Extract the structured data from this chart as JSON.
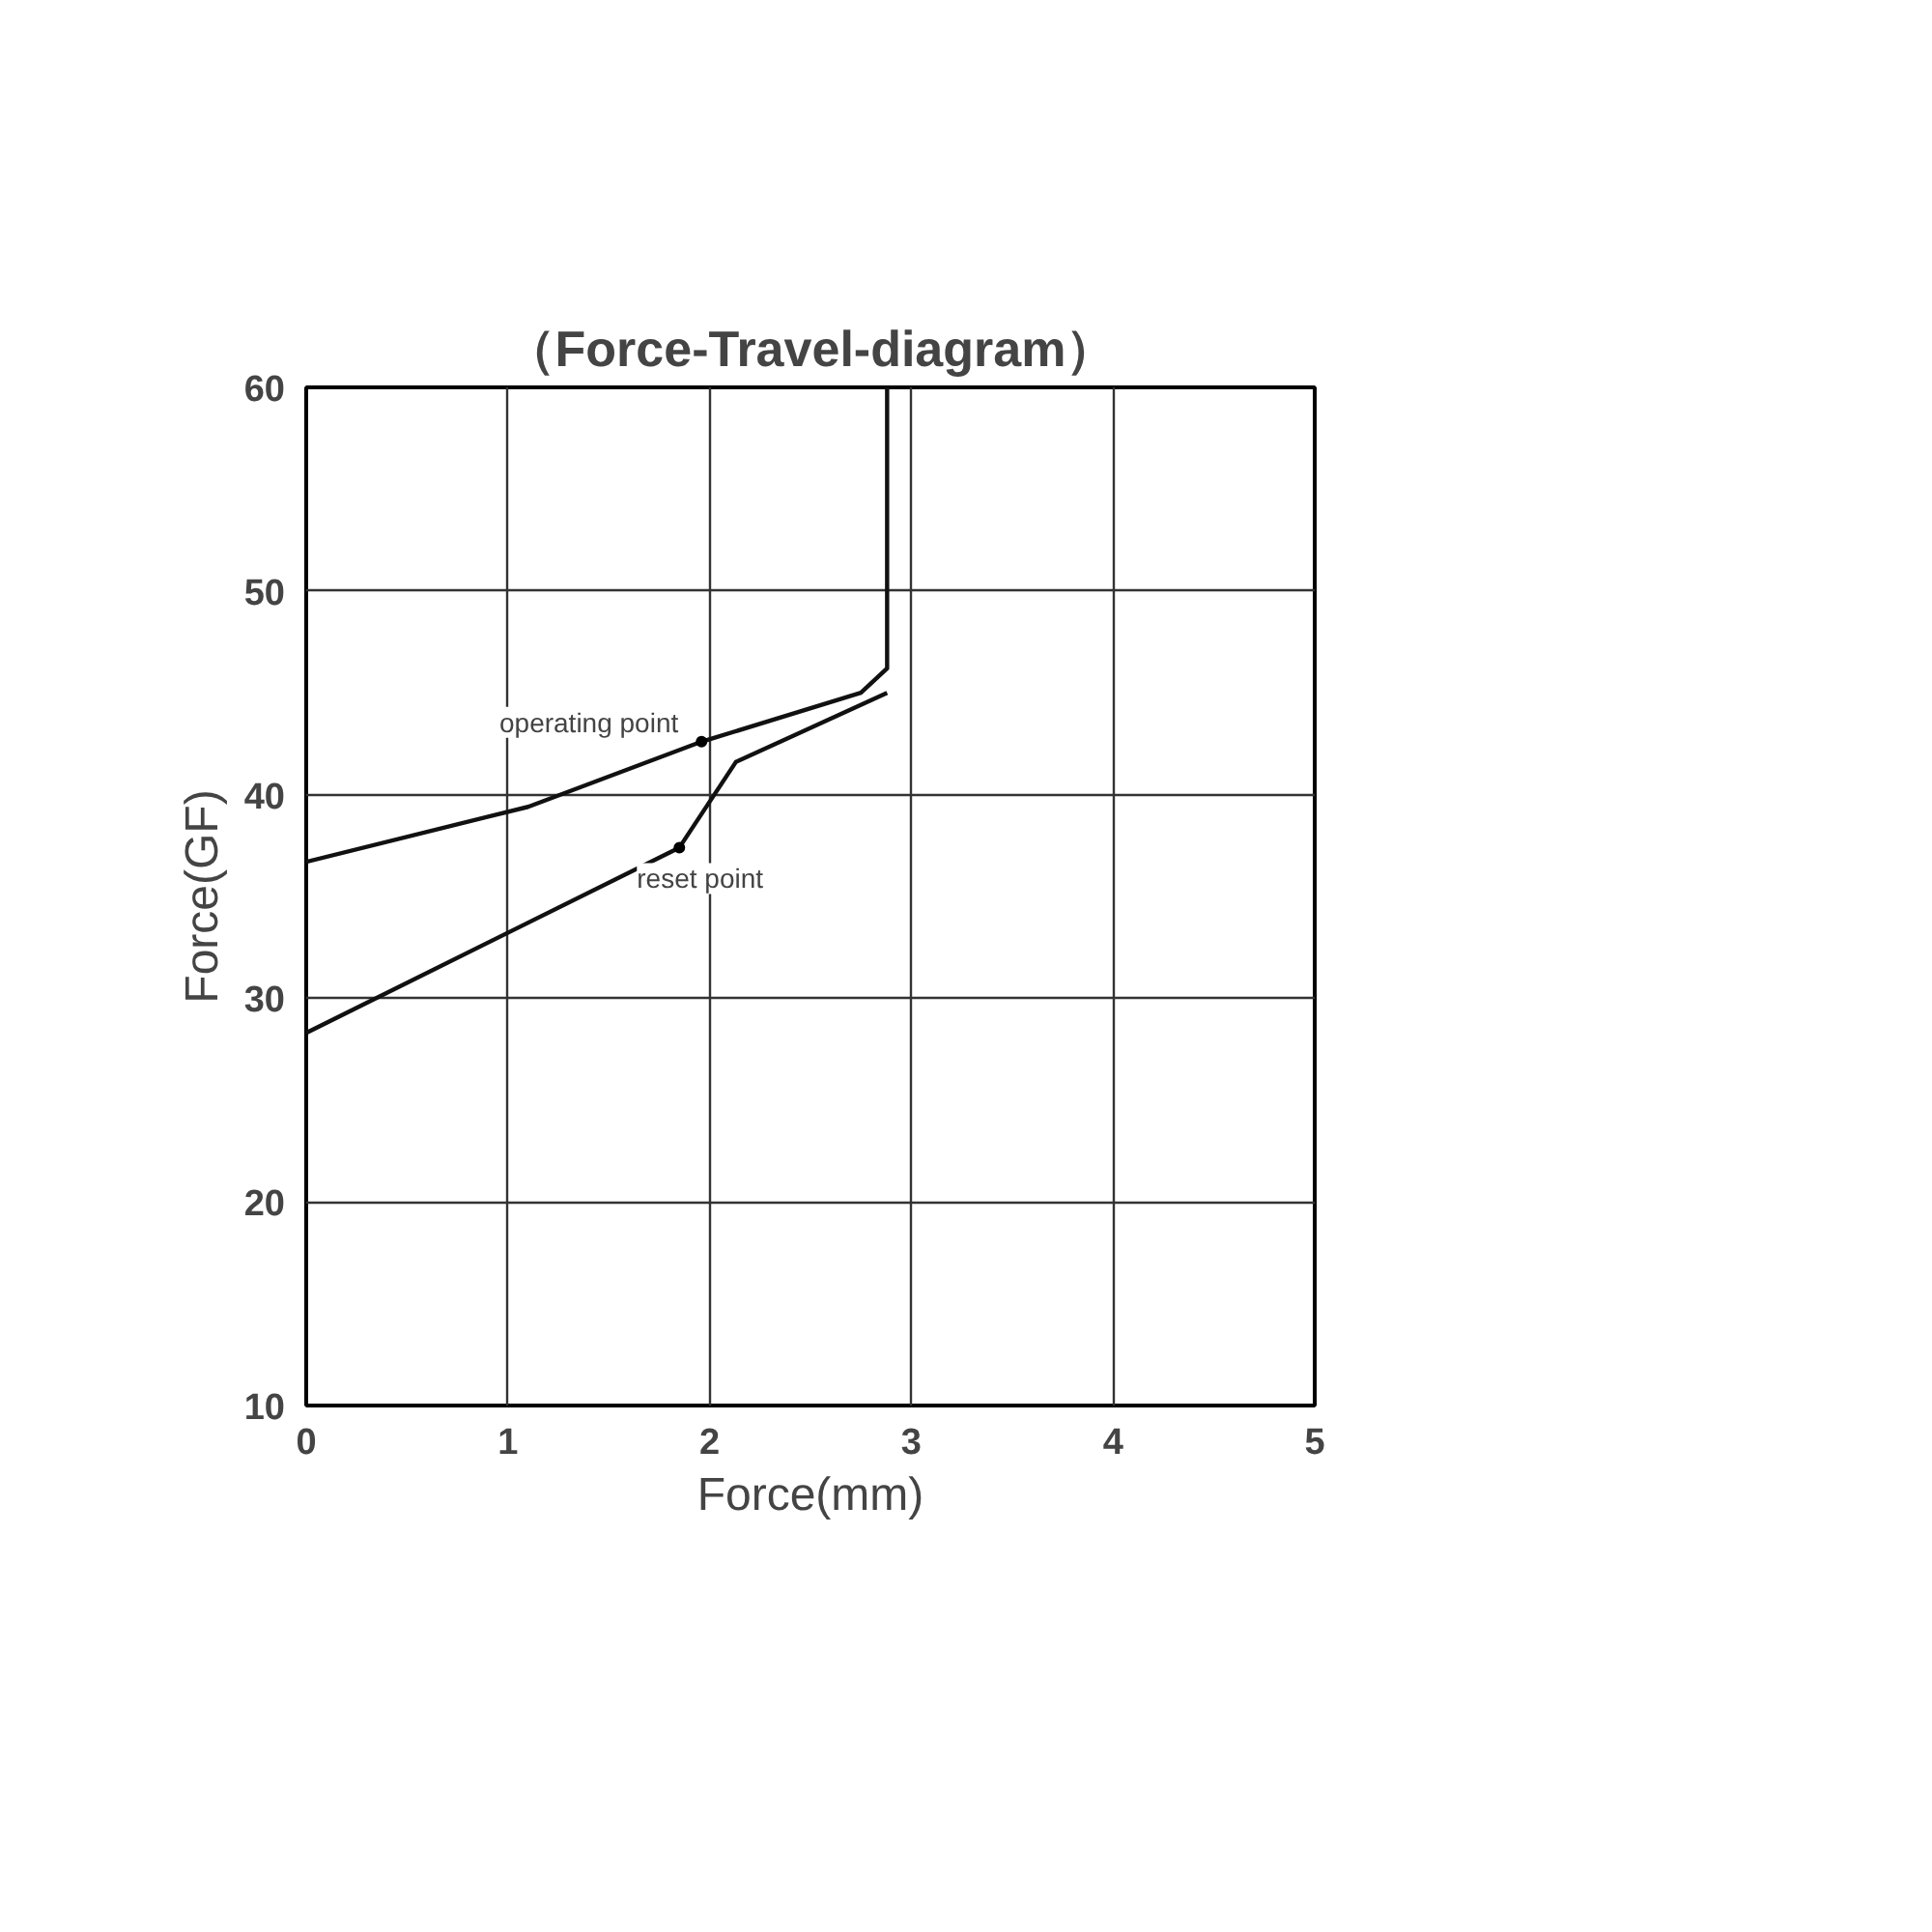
{
  "chart_data": {
    "type": "line",
    "title": "（Force-Travel-diagram）",
    "xlabel": "Force(mm)",
    "ylabel": "Force(GF)",
    "xlim": [
      0,
      5
    ],
    "ylim": [
      10,
      60
    ],
    "xticks": [
      0,
      1,
      2,
      3,
      4,
      5
    ],
    "yticks": [
      10,
      20,
      30,
      40,
      50,
      60
    ],
    "grid": true,
    "marker": "none",
    "line_style": "solid",
    "series": [
      {
        "color": "#111111",
        "x": [
          0,
          1.1,
          1.96,
          2.75,
          2.88,
          2.88
        ],
        "values": [
          36.7,
          39.4,
          42.6,
          45,
          46.2,
          60
        ]
      },
      {
        "color": "#111111",
        "x": [
          0,
          1.85,
          2.13,
          2.88
        ],
        "values": [
          28.3,
          37.4,
          41.6,
          45
        ]
      }
    ],
    "annotations": [
      {
        "text": "operating point",
        "x": 1.96,
        "y": 42.6
      },
      {
        "text": "reset point",
        "x": 1.85,
        "y": 37.4
      }
    ]
  }
}
